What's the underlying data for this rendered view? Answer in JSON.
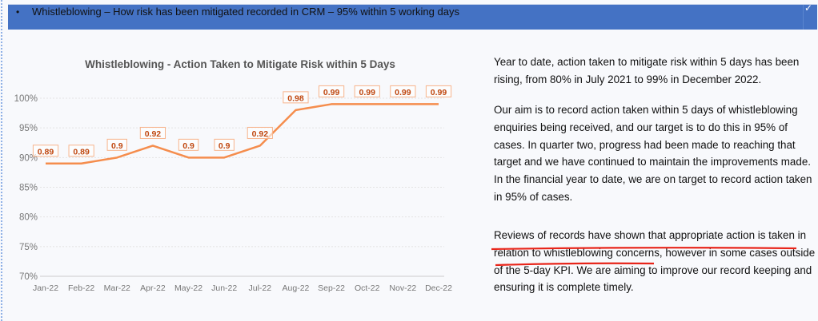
{
  "header": {
    "bullet": "•",
    "text": "Whistleblowing – How risk has been mitigated recorded in CRM – 95% within 5 working days",
    "check": "✓",
    "bg_color": "#4472c4"
  },
  "chart_data": {
    "type": "line",
    "title": "Whistleblowing - Action Taken to Mitigate Risk within 5 Days",
    "categories": [
      "Jan-22",
      "Feb-22",
      "Mar-22",
      "Apr-22",
      "May-22",
      "Jun-22",
      "Jul-22",
      "Aug-22",
      "Sep-22",
      "Oct-22",
      "Nov-22",
      "Dec-22"
    ],
    "values": [
      0.89,
      0.89,
      0.9,
      0.92,
      0.9,
      0.9,
      0.92,
      0.98,
      0.99,
      0.99,
      0.99,
      0.99
    ],
    "data_labels": [
      "0.89",
      "0.89",
      "0.9",
      "0.92",
      "0.9",
      "0.9",
      "0.92",
      "0.98",
      "0.99",
      "0.99",
      "0.99",
      "0.99"
    ],
    "ylim": [
      0.7,
      1.0
    ],
    "yticks": [
      "70%",
      "75%",
      "80%",
      "85%",
      "90%",
      "95%",
      "100%"
    ],
    "xlabel": "",
    "ylabel": "",
    "grid": true,
    "line_color": "#f58d4d",
    "label_color": "#c0470f"
  },
  "commentary": {
    "paragraphs": [
      [
        "Year to date, action taken to mitigate risk within 5 days has been",
        "rising, from 80% in July 2021 to 99% in December 2022."
      ],
      [
        "Our aim is to record action taken within 5 days of whistleblowing",
        "enquiries being received, and our target is to do this in 95% of",
        "cases. In quarter two, progress had been made to reaching that",
        "target and we have continued to maintain the improvements made.",
        "In the financial year to date, we are on target to record action taken",
        "in 95% of cases."
      ],
      [
        "Reviews of records have shown that appropriate action is taken in",
        "relation to whistleblowing concerns, however in some cases outside",
        "of the 5-day KPI. We are aiming to improve our record keeping and",
        "ensuring it is complete timely."
      ]
    ],
    "annotation_color": "#e8251a"
  }
}
